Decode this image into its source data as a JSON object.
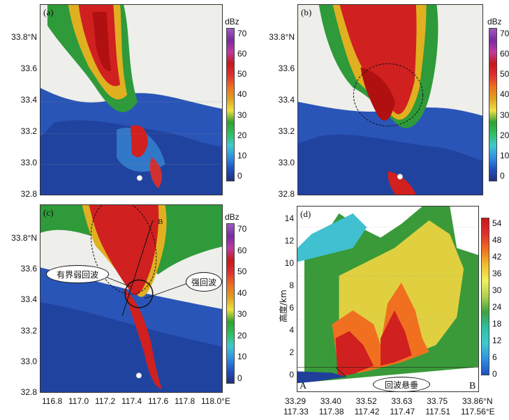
{
  "panels": {
    "a": {
      "label": "(a)"
    },
    "b": {
      "label": "(b)"
    },
    "c": {
      "label": "(c)",
      "callout_left": "有界弱回波",
      "callout_right": "强回波",
      "marker_top": "B"
    },
    "d": {
      "label": "(d)",
      "callout": "回波悬垂",
      "marker_left": "A",
      "marker_right": "B"
    }
  },
  "map_axes": {
    "y_ticks": [
      "33.8°N",
      "33.6",
      "33.4",
      "33.2",
      "33.0",
      "32.8"
    ],
    "x_ticks": [
      "116.8",
      "117.0",
      "117.2",
      "117.4",
      "117.6",
      "117.8",
      "118.0°E"
    ]
  },
  "dbz_colorbar": {
    "unit": "dBz",
    "ticks": [
      "70",
      "60",
      "50",
      "40",
      "30",
      "20",
      "10",
      "0"
    ],
    "colors": [
      "#a05ac0",
      "#7a2aa0",
      "#c03aa0",
      "#c81818",
      "#e03030",
      "#f07020",
      "#e0a020",
      "#f0e040",
      "#30a030",
      "#30c060",
      "#40c8d0",
      "#3090e0",
      "#2050c0",
      "#203080"
    ]
  },
  "section": {
    "ylabel": "高度/km",
    "y_ticks": [
      "14",
      "12",
      "10",
      "8",
      "6",
      "4",
      "2",
      "0"
    ],
    "x_ticks_lat": [
      "33.29",
      "33.40",
      "33.52",
      "33.63",
      "33.75",
      "33.86°N"
    ],
    "x_ticks_lon": [
      "117.33",
      "117.38",
      "117.42",
      "117.47",
      "117.51",
      "117.56°E"
    ],
    "colorbar_ticks": [
      "54",
      "48",
      "42",
      "36",
      "30",
      "24",
      "18",
      "12",
      "6",
      "0"
    ]
  }
}
